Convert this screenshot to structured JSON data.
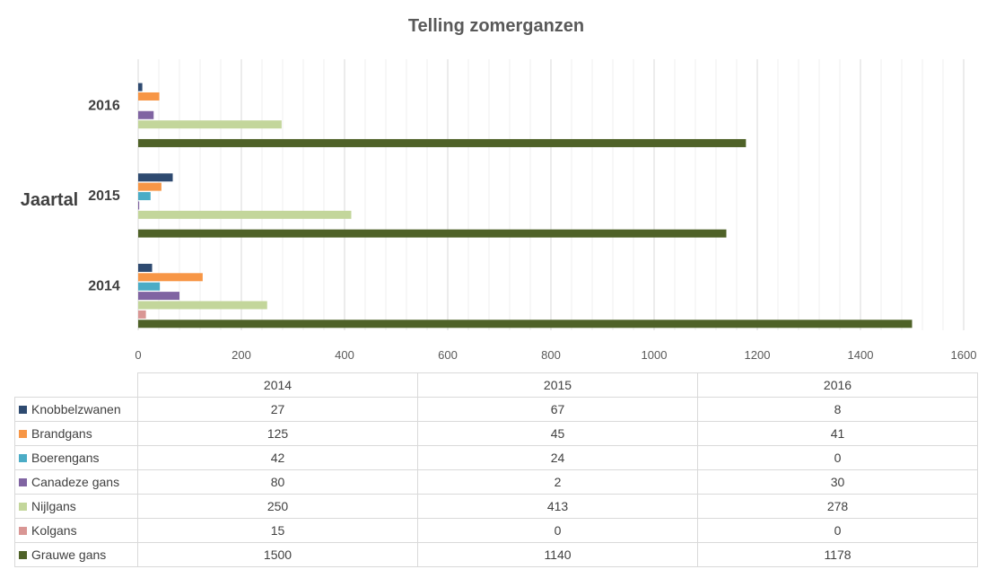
{
  "chart_data": {
    "type": "bar",
    "orientation": "horizontal",
    "title": "Telling zomerganzen",
    "ylabel": "Jaartal",
    "xlabel": "",
    "categories": [
      "2014",
      "2015",
      "2016"
    ],
    "xlim": [
      0,
      1600
    ],
    "x_ticks": [
      "0",
      "200",
      "400",
      "600",
      "800",
      "1000",
      "1200",
      "1400",
      "1600"
    ],
    "grid": true,
    "legend": "data-table",
    "series": [
      {
        "name": "Knobbelzwanen",
        "color": "#2e4a70",
        "values": [
          27,
          67,
          8
        ]
      },
      {
        "name": "Brandgans",
        "color": "#f79646",
        "values": [
          125,
          45,
          41
        ]
      },
      {
        "name": "Boerengans",
        "color": "#4bacc6",
        "values": [
          42,
          24,
          0
        ]
      },
      {
        "name": "Canadeze gans",
        "color": "#8064a2",
        "values": [
          80,
          2,
          30
        ]
      },
      {
        "name": "Nijlgans",
        "color": "#c3d69b",
        "values": [
          250,
          413,
          278
        ]
      },
      {
        "name": "Kolgans",
        "color": "#d99694",
        "values": [
          15,
          0,
          0
        ]
      },
      {
        "name": "Grauwe gans",
        "color": "#4f6228",
        "values": [
          1500,
          1140,
          1178
        ]
      }
    ],
    "table": {
      "rows": [
        [
          "27",
          "67",
          "8"
        ],
        [
          "125",
          "45",
          "41"
        ],
        [
          "42",
          "24",
          "0"
        ],
        [
          "80",
          "2",
          "30"
        ],
        [
          "250",
          "413",
          "278"
        ],
        [
          "15",
          "0",
          "0"
        ],
        [
          "1500",
          "1140",
          "1178"
        ]
      ]
    }
  }
}
